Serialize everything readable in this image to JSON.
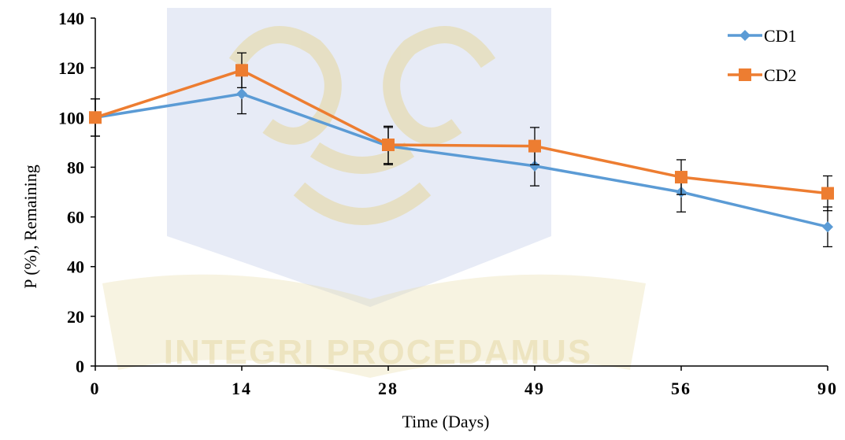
{
  "chart_data": {
    "type": "line",
    "title": "",
    "xlabel": "Time (Days)",
    "ylabel": "P (%),  Remaining",
    "categories": [
      "0",
      "14",
      "28",
      "49",
      "56",
      "90"
    ],
    "ylim": [
      0,
      140
    ],
    "yticks": [
      "0",
      "20",
      "40",
      "60",
      "80",
      "100",
      "120",
      "140"
    ],
    "series": [
      {
        "name": "CD1",
        "color": "#5b9bd5",
        "marker": "diamond",
        "values": [
          100,
          109.5,
          88.5,
          80.5,
          70,
          56
        ],
        "errors": [
          7.5,
          8,
          7.5,
          8,
          8,
          8
        ]
      },
      {
        "name": "CD2",
        "color": "#ed7d31",
        "marker": "square",
        "values": [
          100,
          119,
          89,
          88.5,
          76,
          69.5
        ],
        "errors": [
          7.5,
          7,
          7.5,
          7.5,
          7,
          7
        ]
      }
    ],
    "grid": false,
    "legend_position": "top-right"
  },
  "watermark": {
    "motto": "INTEGRI PROCEDAMUS"
  }
}
